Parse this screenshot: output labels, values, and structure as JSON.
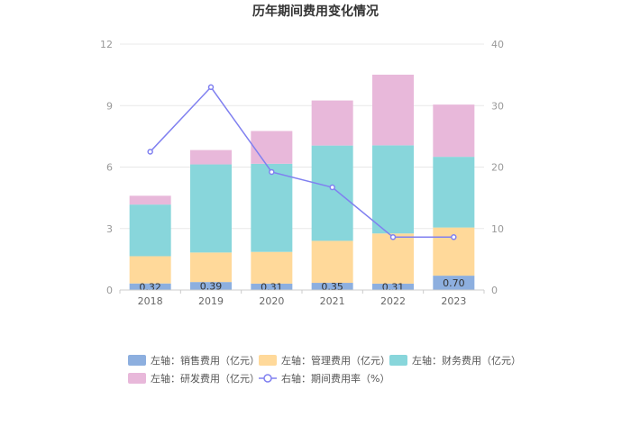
{
  "chart_data": {
    "type": "bar",
    "title": "历年期间费用变化情况",
    "categories": [
      "2018",
      "2019",
      "2020",
      "2021",
      "2022",
      "2023"
    ],
    "left_axis": {
      "ylim": [
        0,
        12
      ],
      "ticks": [
        "0",
        "3",
        "6",
        "9",
        "12"
      ]
    },
    "right_axis": {
      "ylim": [
        0,
        40
      ],
      "ticks": [
        "0",
        "10",
        "20",
        "30",
        "40"
      ]
    },
    "stacked": true,
    "series": [
      {
        "name": "左轴：销售费用（亿元）",
        "axis": "left",
        "color": "#8DAFDF",
        "values": [
          0.32,
          0.39,
          0.31,
          0.35,
          0.31,
          0.7
        ],
        "labels": [
          "0.32",
          "0.39",
          "0.31",
          "0.35",
          "0.31",
          "0.70"
        ]
      },
      {
        "name": "左轴：管理费用（亿元）",
        "axis": "left",
        "color": "#FFD99A",
        "values": [
          1.33,
          1.44,
          1.55,
          2.05,
          2.45,
          2.35
        ]
      },
      {
        "name": "左轴：财务费用（亿元）",
        "axis": "left",
        "color": "#88D6DB",
        "values": [
          2.52,
          4.3,
          4.3,
          4.65,
          4.3,
          3.45
        ]
      },
      {
        "name": "左轴：研发费用（亿元）",
        "axis": "left",
        "color": "#E8B8DA",
        "values": [
          0.43,
          0.7,
          1.6,
          2.2,
          3.45,
          2.55
        ]
      }
    ],
    "line": {
      "name": "右轴：期间费用率（%）",
      "axis": "right",
      "color": "#8080F0",
      "values": [
        22.5,
        33.0,
        19.2,
        16.7,
        8.6,
        8.6
      ]
    },
    "grid": true,
    "legend": "bottom"
  }
}
